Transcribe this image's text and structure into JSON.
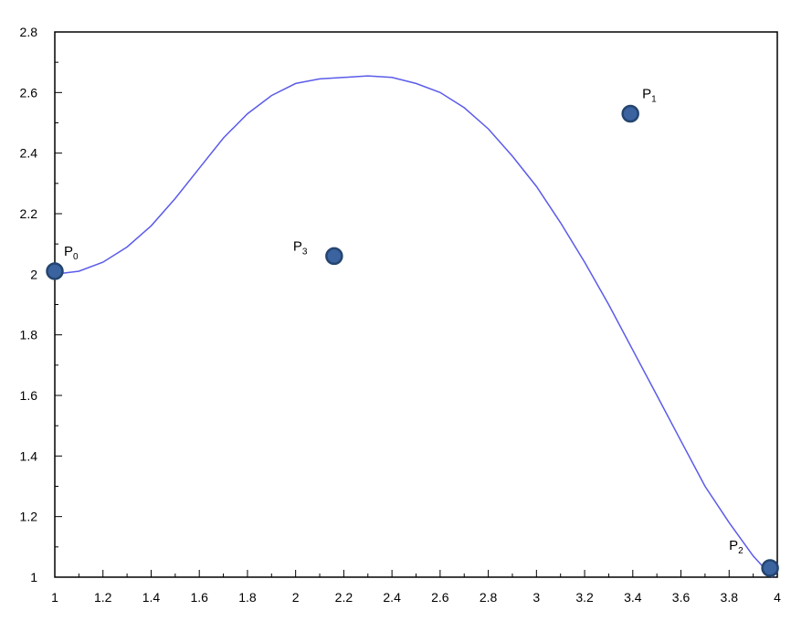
{
  "chart_data": {
    "type": "line",
    "title": "",
    "xlabel": "",
    "ylabel": "",
    "xlim": [
      1,
      4
    ],
    "ylim": [
      1,
      2.8
    ],
    "x_ticks": [
      "1",
      "1.2",
      "1.4",
      "1.6",
      "1.8",
      "2",
      "2.2",
      "2.4",
      "2.6",
      "2.8",
      "3",
      "3.2",
      "3.4",
      "3.6",
      "3.8",
      "4"
    ],
    "y_ticks": [
      "1",
      "1.2",
      "1.4",
      "1.6",
      "1.8",
      "2",
      "2.2",
      "2.4",
      "2.6",
      "2.8"
    ],
    "grid": false,
    "series": [
      {
        "color": "#5b5bea",
        "x": [
          1.0,
          1.1,
          1.2,
          1.3,
          1.4,
          1.5,
          1.6,
          1.7,
          1.8,
          1.9,
          2.0,
          2.1,
          2.2,
          2.3,
          2.4,
          2.5,
          2.6,
          2.7,
          2.8,
          2.9,
          3.0,
          3.1,
          3.2,
          3.3,
          3.4,
          3.5,
          3.6,
          3.7,
          3.8,
          3.9,
          3.98
        ],
        "y": [
          2.0,
          2.01,
          2.04,
          2.09,
          2.16,
          2.25,
          2.35,
          2.45,
          2.53,
          2.59,
          2.63,
          2.645,
          2.65,
          2.655,
          2.65,
          2.63,
          2.6,
          2.55,
          2.48,
          2.39,
          2.29,
          2.17,
          2.04,
          1.9,
          1.75,
          1.6,
          1.45,
          1.3,
          1.18,
          1.07,
          1.0
        ]
      }
    ],
    "points": [
      {
        "label": "P",
        "sub": "0",
        "x": 1.0,
        "y": 2.01
      },
      {
        "label": "P",
        "sub": "1",
        "x": 3.39,
        "y": 2.53
      },
      {
        "label": "P",
        "sub": "2",
        "x": 3.97,
        "y": 1.03
      },
      {
        "label": "P",
        "sub": "3",
        "x": 2.16,
        "y": 2.06
      }
    ],
    "point_color": "#3b63a0",
    "point_edge": "#24456f"
  }
}
